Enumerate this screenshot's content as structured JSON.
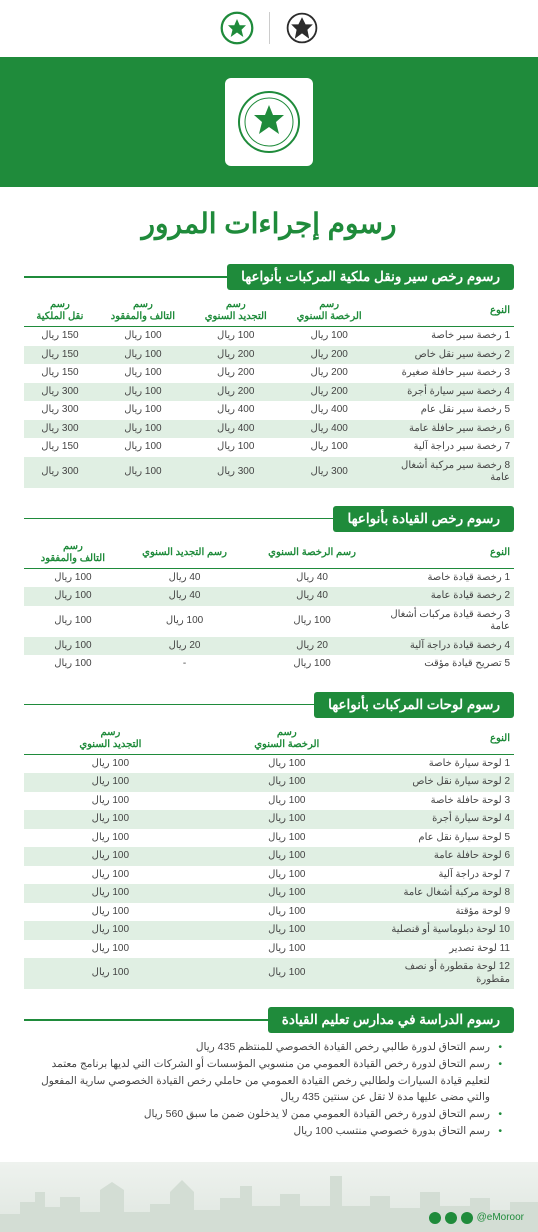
{
  "colors": {
    "brand": "#1f8b3b",
    "row_stripe": "#e0efe3",
    "page_bg": "#e8ede9",
    "card_bg": "#ffffff",
    "text": "#444444"
  },
  "page_title": "رسوم إجراءات المرور",
  "currency_suffix": "ريال",
  "logos": {
    "left": "emblem-traffic",
    "right": "emblem-moi",
    "hero": "traffic-department-emblem"
  },
  "section1": {
    "title": "رسوم رخص سير ونقل ملكية المركبات بأنواعها",
    "columns": [
      "النوع",
      "رسم\nالرخصة السنوي",
      "رسم\nالتجديد السنوي",
      "رسم\nالتالف والمفقود",
      "رسم\nنقل الملكية"
    ],
    "rows": [
      [
        "رخصة سير خاصة",
        "100 ريال",
        "100 ريال",
        "100 ريال",
        "150 ريال"
      ],
      [
        "رخصة سير نقل خاص",
        "200 ريال",
        "200 ريال",
        "100 ريال",
        "150 ريال"
      ],
      [
        "رخصة سير حافلة صغيرة",
        "200 ريال",
        "200 ريال",
        "100 ريال",
        "150 ريال"
      ],
      [
        "رخصة سير سيارة أجرة",
        "200 ريال",
        "200 ريال",
        "100 ريال",
        "300 ريال"
      ],
      [
        "رخصة سير نقل عام",
        "400 ريال",
        "400 ريال",
        "100 ريال",
        "300 ريال"
      ],
      [
        "رخصة سير حافلة عامة",
        "400 ريال",
        "400 ريال",
        "100 ريال",
        "300 ريال"
      ],
      [
        "رخصة سير دراجة آلية",
        "100 ريال",
        "100 ريال",
        "100 ريال",
        "150 ريال"
      ],
      [
        "رخصة سير مركبة أشغال عامة",
        "300 ريال",
        "300 ريال",
        "100 ريال",
        "300 ريال"
      ]
    ]
  },
  "section2": {
    "title": "رسوم رخص القيادة بأنواعها",
    "columns": [
      "النوع",
      "رسم الرخصة السنوي",
      "رسم التجديد السنوي",
      "رسم\nالتالف والمفقود"
    ],
    "rows": [
      [
        "رخصة قيادة خاصة",
        "40 ريال",
        "40 ريال",
        "100 ريال"
      ],
      [
        "رخصة قيادة عامة",
        "40 ريال",
        "40 ريال",
        "100 ريال"
      ],
      [
        "رخصة قيادة مركبات أشغال عامة",
        "100 ريال",
        "100 ريال",
        "100 ريال"
      ],
      [
        "رخصة قيادة دراجة آلية",
        "20 ريال",
        "20 ريال",
        "100 ريال"
      ],
      [
        "تصريح قيادة مؤقت",
        "100 ريال",
        "-",
        "100 ريال"
      ]
    ]
  },
  "section3": {
    "title": "رسوم لوحات المركبات بأنواعها",
    "columns": [
      "النوع",
      "رسم\nالرخصة السنوي",
      "رسم\nالتجديد السنوي"
    ],
    "rows": [
      [
        "لوحة سيارة خاصة",
        "100 ريال",
        "100 ريال"
      ],
      [
        "لوحة سيارة نقل خاص",
        "100 ريال",
        "100 ريال"
      ],
      [
        "لوحة حافلة خاصة",
        "100 ريال",
        "100 ريال"
      ],
      [
        "لوحة سيارة أجرة",
        "100 ريال",
        "100 ريال"
      ],
      [
        "لوحة سيارة نقل عام",
        "100 ريال",
        "100 ريال"
      ],
      [
        "لوحة حافلة عامة",
        "100 ريال",
        "100 ريال"
      ],
      [
        "لوحة دراجة آلية",
        "100 ريال",
        "100 ريال"
      ],
      [
        "لوحة مركبة أشغال عامة",
        "100 ريال",
        "100 ريال"
      ],
      [
        "لوحة مؤقتة",
        "100 ريال",
        "100 ريال"
      ],
      [
        "لوحة دبلوماسية أو قنصلية",
        "100 ريال",
        "100 ريال"
      ],
      [
        "لوحة تصدير",
        "100 ريال",
        "100 ريال"
      ],
      [
        "لوحة مقطورة أو نصف مقطورة",
        "100 ريال",
        "100 ريال"
      ]
    ]
  },
  "section4": {
    "title": "رسوم الدراسة في مدارس تعليم القيادة",
    "bullets": [
      "رسم التحاق لدورة طالبي رخص القيادة الخصوصي للمنتظم 435 ريال",
      "رسم التحاق لدورة رخص القيادة العمومي من منسوبي المؤسسات أو الشركات التي لديها برنامج معتمد لتعليم قيادة السيارات ولطالبي رخص القيادة العمومي من حاملي رخص القيادة الخصوصي سارية المفعول والتي مضى عليها مدة لا تقل عن سنتين 435 ريال",
      "رسم التحاق لدورة رخص القيادة العمومي ممن لا يدخلون ضمن ما سبق 560 ريال",
      "رسم التحاق بدورة خصوصي منتسب 100 ريال"
    ]
  },
  "footer": {
    "handle": "@eMoroor",
    "social": [
      "twitter",
      "youtube",
      "instagram"
    ]
  }
}
